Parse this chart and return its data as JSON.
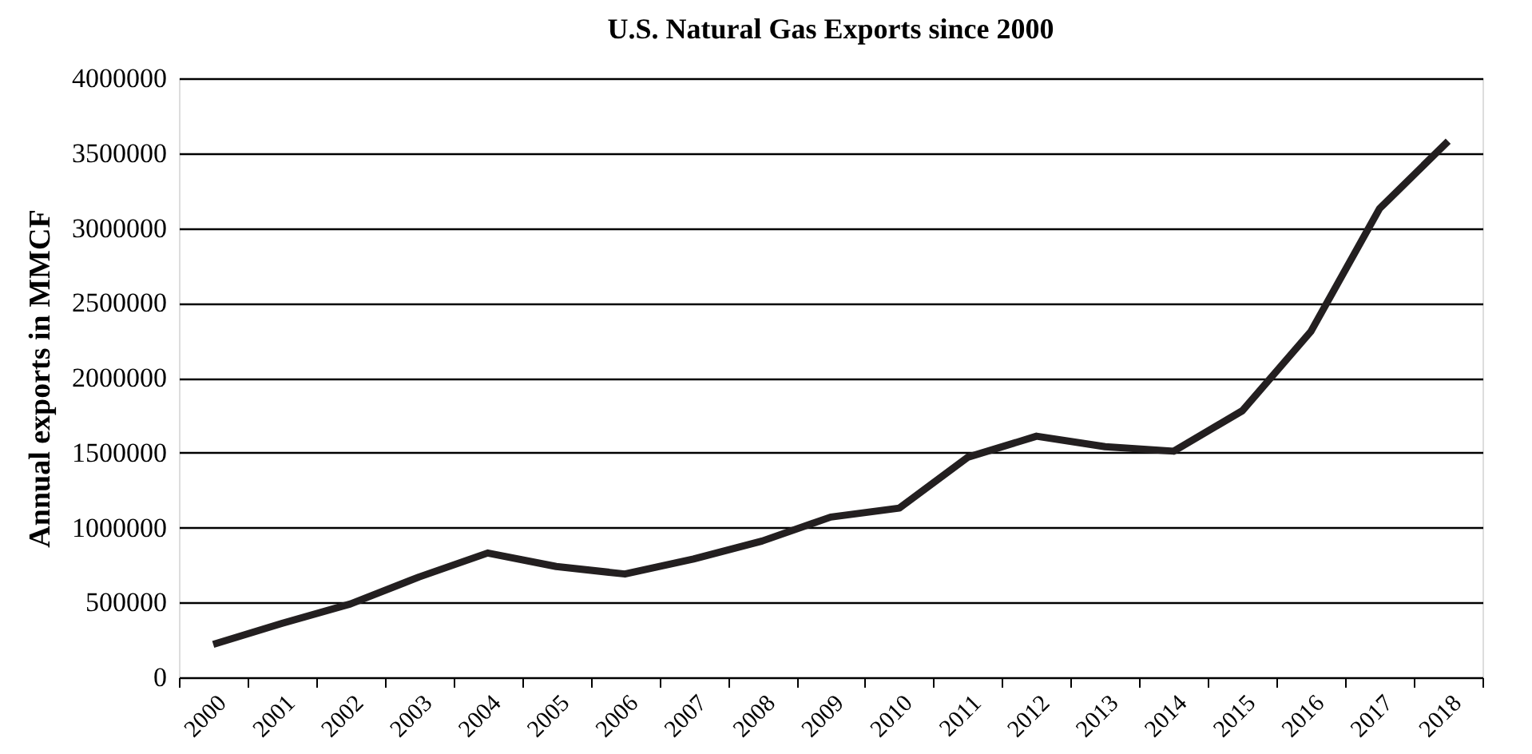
{
  "chart_data": {
    "type": "line",
    "title": "U.S. Natural Gas Exports since 2000",
    "ylabel": "Annual exports in MMCF",
    "categories": [
      "2000",
      "2001",
      "2002",
      "2003",
      "2004",
      "2005",
      "2006",
      "2007",
      "2008",
      "2009",
      "2010",
      "2011",
      "2012",
      "2013",
      "2014",
      "2015",
      "2016",
      "2017",
      "2018"
    ],
    "series": [
      {
        "color": "#231f20",
        "values": [
          220000,
          360000,
          490000,
          670000,
          830000,
          740000,
          690000,
          790000,
          910000,
          1070000,
          1130000,
          1470000,
          1610000,
          1540000,
          1510000,
          1780000,
          2310000,
          3130000,
          3580000
        ]
      }
    ],
    "ylim": [
      0,
      4000000
    ],
    "yticks": [
      0,
      500000,
      1000000,
      1500000,
      2000000,
      2500000,
      3000000,
      3500000,
      4000000
    ],
    "grid": "y",
    "legend": false,
    "marker": "none",
    "line_style": "solid"
  }
}
